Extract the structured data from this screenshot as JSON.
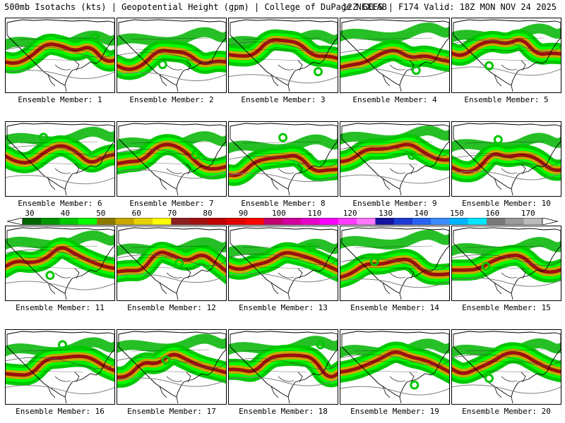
{
  "header": {
    "left": "500mb Isotachs (kts) | Geopotential Height (gpm) | College of DuPage NEXLAB",
    "right": "12Z GEFS | F174 Valid: 18Z MON NOV 24 2025"
  },
  "panels": [
    {
      "label": "Ensemble Member: 1"
    },
    {
      "label": "Ensemble Member: 2"
    },
    {
      "label": "Ensemble Member: 3"
    },
    {
      "label": "Ensemble Member: 4"
    },
    {
      "label": "Ensemble Member: 5"
    },
    {
      "label": "Ensemble Member: 6"
    },
    {
      "label": "Ensemble Member: 7"
    },
    {
      "label": "Ensemble Member: 8"
    },
    {
      "label": "Ensemble Member: 9"
    },
    {
      "label": "Ensemble Member: 10"
    },
    {
      "label": "Ensemble Member: 11"
    },
    {
      "label": "Ensemble Member: 12"
    },
    {
      "label": "Ensemble Member: 13"
    },
    {
      "label": "Ensemble Member: 14"
    },
    {
      "label": "Ensemble Member: 15"
    },
    {
      "label": "Ensemble Member: 16"
    },
    {
      "label": "Ensemble Member: 17"
    },
    {
      "label": "Ensemble Member: 18"
    },
    {
      "label": "Ensemble Member: 19"
    },
    {
      "label": "Ensemble Member: 20"
    }
  ],
  "colorbar": {
    "labels": [
      "30",
      "40",
      "50",
      "60",
      "70",
      "80",
      "90",
      "100",
      "110",
      "120",
      "130",
      "140",
      "150",
      "160",
      "170"
    ],
    "colors": [
      "#006400",
      "#009600",
      "#00c800",
      "#00ff00",
      "#8b7a00",
      "#c8a800",
      "#e6d200",
      "#ffff00",
      "#8b2020",
      "#a01010",
      "#c00000",
      "#e00000",
      "#ff0000",
      "#c0006e",
      "#d2009e",
      "#e600c8",
      "#ff00ff",
      "#ff3cff",
      "#ff78ff",
      "#1414a0",
      "#1e3cd2",
      "#2864f0",
      "#3c8cff",
      "#00b4ff",
      "#00e6ff",
      "#787878",
      "#9a9a9a",
      "#bcbcbc"
    ]
  }
}
